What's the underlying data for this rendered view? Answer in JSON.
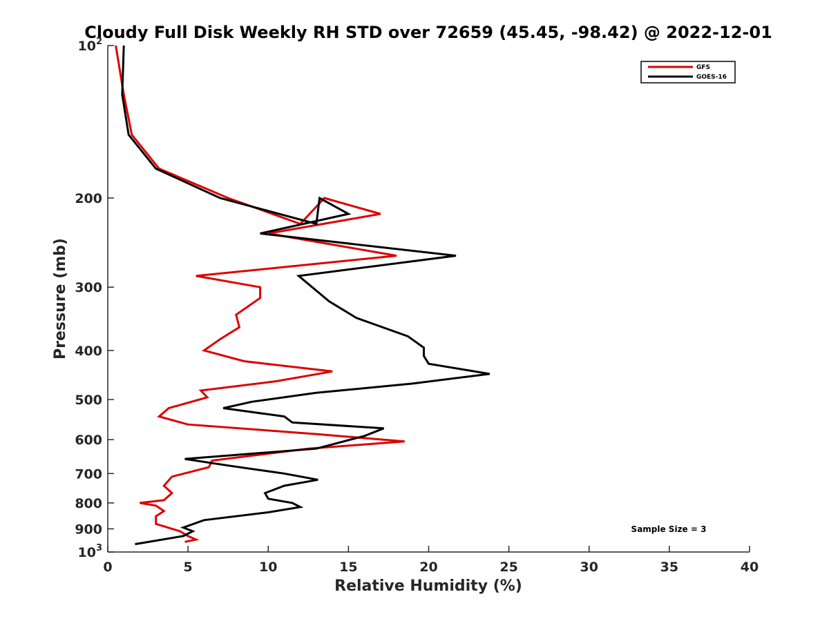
{
  "chart_data": {
    "type": "line",
    "title": "Cloudy Full Disk Weekly RH STD over 72659 (45.45, -98.42) @ 2022-12-01",
    "xlabel": "Relative Humidity (%)",
    "ylabel": "Pressure (mb)",
    "xlim": [
      0,
      40
    ],
    "ylim": [
      100,
      1000
    ],
    "y_scale": "log",
    "y_reversed": true,
    "xticks": [
      0,
      5,
      10,
      15,
      20,
      25,
      30,
      35,
      40
    ],
    "xtick_labels": [
      "0",
      "5",
      "10",
      "15",
      "20",
      "25",
      "30",
      "35",
      "40"
    ],
    "yticks": [
      100,
      200,
      300,
      400,
      500,
      600,
      700,
      800,
      900,
      1000
    ],
    "ytick_labels": [
      {
        "base": "10",
        "exp": "2"
      },
      {
        "base": "200",
        "exp": ""
      },
      {
        "base": "300",
        "exp": ""
      },
      {
        "base": "400",
        "exp": ""
      },
      {
        "base": "500",
        "exp": ""
      },
      {
        "base": "600",
        "exp": ""
      },
      {
        "base": "700",
        "exp": ""
      },
      {
        "base": "800",
        "exp": ""
      },
      {
        "base": "900",
        "exp": ""
      },
      {
        "base": "10",
        "exp": "3"
      }
    ],
    "grid": false,
    "legend_position": "top-right",
    "annotation": "Sample Size = 3",
    "series": [
      {
        "name": "GFS",
        "color": "#dd0000",
        "points": [
          [
            0.5,
            100
          ],
          [
            1.0,
            125
          ],
          [
            1.5,
            150
          ],
          [
            3.2,
            175
          ],
          [
            7.5,
            200
          ],
          [
            12,
            225
          ],
          [
            13.5,
            200
          ],
          [
            17,
            215
          ],
          [
            10,
            235
          ],
          [
            18,
            260
          ],
          [
            5.5,
            285
          ],
          [
            9.5,
            300
          ],
          [
            9.5,
            315
          ],
          [
            8,
            340
          ],
          [
            8.2,
            360
          ],
          [
            7,
            380
          ],
          [
            6,
            400
          ],
          [
            8.5,
            420
          ],
          [
            14,
            440
          ],
          [
            10.5,
            460
          ],
          [
            5.8,
            480
          ],
          [
            6.2,
            495
          ],
          [
            3.8,
            520
          ],
          [
            3.2,
            540
          ],
          [
            5,
            560
          ],
          [
            13,
            585
          ],
          [
            18.5,
            605
          ],
          [
            12.5,
            625
          ],
          [
            6.5,
            660
          ],
          [
            6.3,
            680
          ],
          [
            4,
            710
          ],
          [
            3.5,
            740
          ],
          [
            4,
            765
          ],
          [
            3.5,
            790
          ],
          [
            2,
            800
          ],
          [
            3,
            810
          ],
          [
            3.5,
            830
          ],
          [
            3,
            850
          ],
          [
            3,
            880
          ],
          [
            4.5,
            910
          ],
          [
            5,
            930
          ],
          [
            5.5,
            945
          ],
          [
            4.8,
            955
          ]
        ]
      },
      {
        "name": "GOES-16",
        "color": "#000000",
        "points": [
          [
            1.0,
            100
          ],
          [
            0.9,
            125
          ],
          [
            1.3,
            150
          ],
          [
            3.0,
            175
          ],
          [
            7.0,
            200
          ],
          [
            13,
            225
          ],
          [
            13.2,
            200
          ],
          [
            15,
            215
          ],
          [
            9.5,
            235
          ],
          [
            21.7,
            260
          ],
          [
            11.9,
            285
          ],
          [
            13.8,
            320
          ],
          [
            15.5,
            345
          ],
          [
            18.7,
            375
          ],
          [
            19.7,
            395
          ],
          [
            19.7,
            410
          ],
          [
            20,
            425
          ],
          [
            23.8,
            445
          ],
          [
            19,
            465
          ],
          [
            13,
            485
          ],
          [
            9,
            505
          ],
          [
            7.2,
            520
          ],
          [
            11,
            540
          ],
          [
            11.5,
            555
          ],
          [
            17.2,
            570
          ],
          [
            16,
            590
          ],
          [
            13,
            625
          ],
          [
            4.8,
            655
          ],
          [
            7.5,
            675
          ],
          [
            11,
            700
          ],
          [
            13.1,
            720
          ],
          [
            11,
            740
          ],
          [
            9.8,
            765
          ],
          [
            10,
            785
          ],
          [
            11.5,
            800
          ],
          [
            12,
            815
          ],
          [
            10,
            835
          ],
          [
            6,
            865
          ],
          [
            4.7,
            895
          ],
          [
            5.3,
            910
          ],
          [
            4.7,
            930
          ],
          [
            1.7,
            965
          ]
        ]
      }
    ]
  }
}
